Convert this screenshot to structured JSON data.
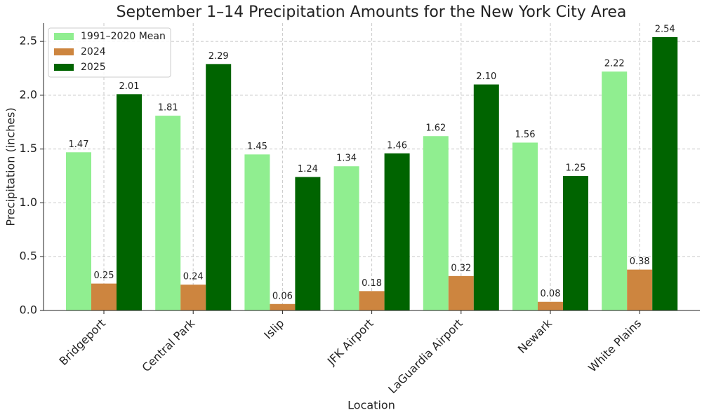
{
  "chart_data": {
    "type": "bar",
    "title": "September 1–14 Precipitation Amounts for the New York City Area",
    "x_label": "Location",
    "y_label": "Precipitation (inches)",
    "categories": [
      "Bridgeport",
      "Central Park",
      "Islip",
      "JFK Airport",
      "LaGuardia Airport",
      "Newark",
      "White Plains"
    ],
    "series": [
      {
        "name": "1991–2020 Mean",
        "color": "#90ee90",
        "values": [
          1.47,
          1.81,
          1.45,
          1.34,
          1.62,
          1.56,
          2.22
        ],
        "value_labels": [
          "1.47",
          "1.81",
          "1.45",
          "1.34",
          "1.62",
          "1.56",
          "2.22"
        ]
      },
      {
        "name": "2024",
        "color": "#cd853f",
        "values": [
          0.25,
          0.24,
          0.06,
          0.18,
          0.32,
          0.08,
          0.38
        ],
        "value_labels": [
          "0.25",
          "0.24",
          "0.06",
          "0.18",
          "0.32",
          "0.08",
          "0.38"
        ]
      },
      {
        "name": "2025",
        "color": "#006400",
        "values": [
          2.01,
          2.29,
          1.24,
          1.46,
          2.1,
          1.25,
          2.54
        ],
        "value_labels": [
          "2.01",
          "2.29",
          "1.24",
          "1.46",
          "2.10",
          "1.25",
          "2.54"
        ]
      }
    ],
    "ylim": [
      0,
      2.67
    ],
    "yticks": [
      {
        "value": 0,
        "label": "0.0"
      },
      0.5,
      {
        "value": 1,
        "label": "1.0"
      },
      1.5,
      {
        "value": 2,
        "label": "2.0"
      },
      2.5
    ],
    "grid": true,
    "legend": "upper-left"
  }
}
